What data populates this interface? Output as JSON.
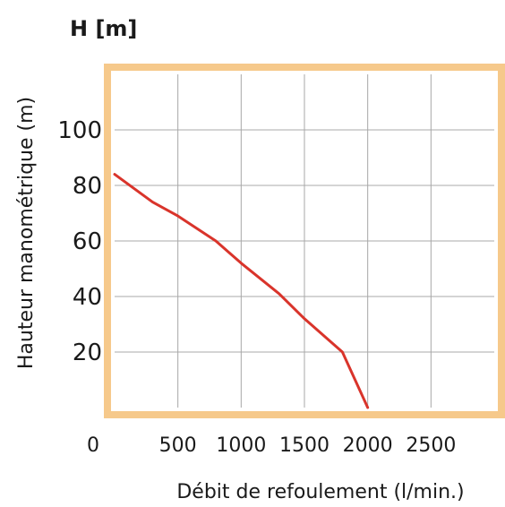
{
  "chart_data": {
    "type": "line",
    "title": "H [m]",
    "xlabel": "Débit de refoulement (l/min.)",
    "ylabel": "Hauteur manométrique (m)",
    "xlim": [
      0,
      3000
    ],
    "ylim": [
      0,
      120
    ],
    "x_ticks": [
      0,
      500,
      1000,
      1500,
      2000,
      2500
    ],
    "y_ticks": [
      20,
      40,
      60,
      80,
      100
    ],
    "grid": true,
    "colors": {
      "frame": "#f6c98b",
      "line": "#d9342b",
      "grid": "#a8a8a8"
    },
    "series": [
      {
        "x": [
          0,
          300,
          500,
          800,
          1000,
          1300,
          1500,
          1800,
          2000
        ],
        "y": [
          84,
          74,
          69,
          60,
          52,
          41,
          32,
          20,
          0
        ]
      }
    ]
  }
}
